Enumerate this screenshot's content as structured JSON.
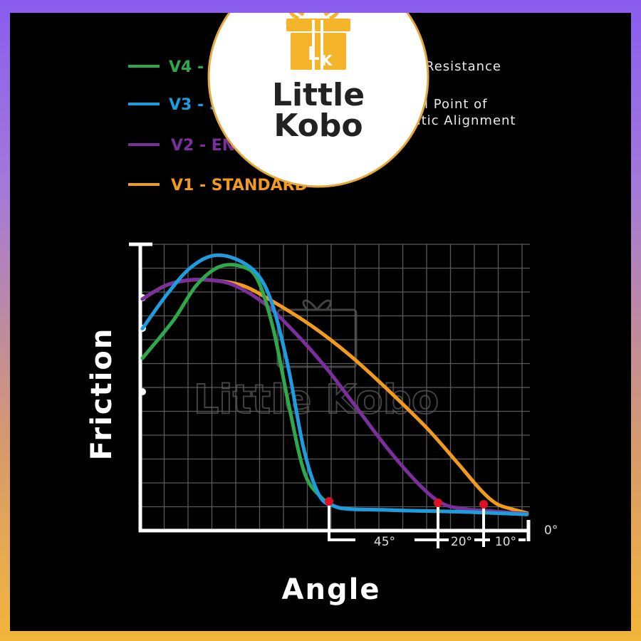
{
  "logo": {
    "word1": "Little",
    "word2": "Kobo",
    "letter": "L",
    "letter2": "K",
    "accent": "#f5b52b",
    "text_color": "#222222"
  },
  "watermark": "Little Kobo",
  "legend": [
    {
      "label": "V4 - ",
      "color": "#2ea84a"
    },
    {
      "label": "V3 - SN",
      "color": "#1f9be0"
    },
    {
      "label": "V2 - ENHANCE",
      "color": "#7b2f9c"
    },
    {
      "label": "V1 - STANDARD",
      "color": "#f29a1c"
    }
  ],
  "notes": {
    "line1": "Resistance",
    "line2": "al Point of",
    "line3": "omatic Alignment"
  },
  "chart_data": {
    "type": "line",
    "title": "",
    "xlabel": "Angle",
    "ylabel": "Friction",
    "x_tick_labels": [
      "45°",
      "20°",
      "10°",
      "0°"
    ],
    "grid": true,
    "legend_position": "top-left",
    "transition_markers": [
      "45°",
      "20°",
      "10°"
    ],
    "series": [
      {
        "name": "V4 - ",
        "color": "#2ea84a",
        "points": [
          [
            0,
            59
          ],
          [
            8,
            73
          ],
          [
            14,
            86
          ],
          [
            20,
            93
          ],
          [
            26,
            93
          ],
          [
            30,
            88
          ],
          [
            34,
            70
          ],
          [
            38,
            42
          ],
          [
            42,
            17
          ],
          [
            46,
            8
          ],
          [
            50,
            4
          ],
          [
            54,
            3
          ],
          [
            62,
            2.7
          ],
          [
            72,
            2.3
          ],
          [
            82,
            2
          ],
          [
            90,
            1.6
          ],
          [
            100,
            1
          ]
        ]
      },
      {
        "name": "V3 - SN",
        "color": "#1f9be0",
        "points": [
          [
            0,
            70
          ],
          [
            6,
            82
          ],
          [
            12,
            92
          ],
          [
            18,
            97
          ],
          [
            24,
            96
          ],
          [
            30,
            90
          ],
          [
            34,
            78
          ],
          [
            38,
            55
          ],
          [
            42,
            25
          ],
          [
            46,
            8
          ],
          [
            50,
            4
          ],
          [
            54,
            3
          ],
          [
            62,
            2.7
          ],
          [
            72,
            2.3
          ],
          [
            82,
            2
          ],
          [
            90,
            1.6
          ],
          [
            100,
            1
          ]
        ]
      },
      {
        "name": "V2 - ENHANCE",
        "color": "#7b2f9c",
        "points": [
          [
            0,
            81
          ],
          [
            6,
            86
          ],
          [
            12,
            88
          ],
          [
            18,
            88
          ],
          [
            24,
            86
          ],
          [
            32,
            79
          ],
          [
            40,
            68
          ],
          [
            48,
            55
          ],
          [
            56,
            40
          ],
          [
            64,
            25
          ],
          [
            72,
            12
          ],
          [
            78,
            5
          ],
          [
            84,
            3
          ],
          [
            90,
            2.3
          ],
          [
            100,
            1.2
          ]
        ]
      },
      {
        "name": "V1 - STANDARD",
        "color": "#f29a1c",
        "points": [
          [
            0,
            81
          ],
          [
            6,
            86
          ],
          [
            12,
            88
          ],
          [
            18,
            88
          ],
          [
            26,
            86
          ],
          [
            34,
            80
          ],
          [
            44,
            71
          ],
          [
            54,
            60
          ],
          [
            64,
            47
          ],
          [
            74,
            33
          ],
          [
            82,
            20
          ],
          [
            88,
            10
          ],
          [
            92,
            5
          ],
          [
            96,
            3
          ],
          [
            100,
            1.5
          ]
        ]
      }
    ],
    "x_range": [
      0,
      100
    ],
    "y_range": [
      0,
      100
    ]
  }
}
